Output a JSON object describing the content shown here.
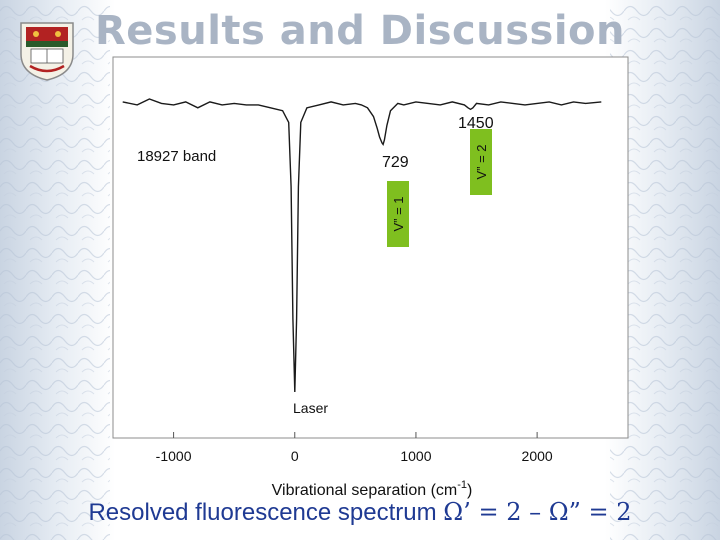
{
  "slide": {
    "title": "Results and Discussion",
    "caption_prefix": "Resolved fluorescence spectrum ",
    "caption_formula": "Ω’ = 2 – Ω” = 2"
  },
  "colors": {
    "title": "#a9b4c4",
    "caption": "#1f3a93",
    "trace": "#1a1a1a",
    "vlabel_fill": "#7fbf1f"
  },
  "chart_data": {
    "type": "line",
    "title": "",
    "xlabel": "Vibrational separation (cm",
    "xlabel_superscript": "-1",
    "xlabel_suffix": ")",
    "ylabel": "",
    "xlim": [
      -1500,
      2750
    ],
    "xticks": [
      -1000,
      0,
      1000,
      2000
    ],
    "xtick_labels": [
      "-1000",
      "0",
      "1000",
      "2000"
    ],
    "series": [
      {
        "x": [
          -1420,
          -1300,
          -1200,
          -1100,
          -1000,
          -900,
          -800,
          -700,
          -600,
          -500,
          -400,
          -300,
          -200,
          -100,
          -50,
          -30,
          -15,
          0,
          15,
          30,
          50,
          100,
          200,
          300,
          400,
          500,
          550,
          600,
          650,
          680,
          700,
          720,
          729,
          740,
          760,
          790,
          850,
          900,
          1000,
          1100,
          1200,
          1300,
          1400,
          1430,
          1450,
          1470,
          1500,
          1600,
          1700,
          1800,
          1900,
          2000,
          2100,
          2200,
          2300,
          2400,
          2530
        ],
        "y": [
          0.01,
          0.02,
          0.0,
          0.015,
          0.02,
          0.01,
          0.03,
          0.01,
          0.02,
          0.015,
          0.02,
          0.02,
          0.03,
          0.04,
          0.08,
          0.3,
          0.75,
          1.0,
          0.75,
          0.3,
          0.08,
          0.03,
          0.02,
          0.01,
          0.02,
          0.015,
          0.02,
          0.03,
          0.06,
          0.1,
          0.13,
          0.15,
          0.155,
          0.14,
          0.09,
          0.04,
          0.015,
          0.02,
          0.01,
          0.015,
          0.02,
          0.01,
          0.02,
          0.03,
          0.035,
          0.03,
          0.015,
          0.02,
          0.01,
          0.015,
          0.02,
          0.015,
          0.01,
          0.02,
          0.01,
          0.015,
          0.01
        ]
      }
    ],
    "annotations": {
      "band": "18927 band",
      "laser": "Laser",
      "peak_729": "729",
      "peak_1450": "1450",
      "v1": "V” = 1",
      "v2": "V” = 2"
    },
    "grid": false
  }
}
